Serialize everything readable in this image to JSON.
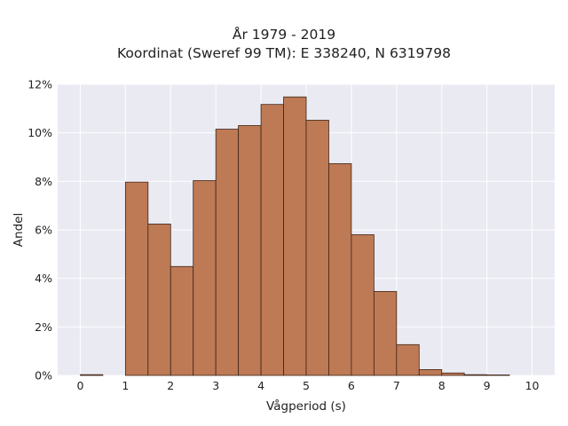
{
  "chart_data": {
    "type": "bar",
    "title": "År 1979 - 2019",
    "subtitle": "Koordinat (Sweref 99 TM): E 338240, N 6319798",
    "xlabel": "Vågperiod (s)",
    "ylabel": "Andel",
    "xlim": [
      -0.5,
      10.5
    ],
    "ylim": [
      0,
      12
    ],
    "xticks": [
      "0",
      "1",
      "2",
      "3",
      "4",
      "5",
      "6",
      "7",
      "8",
      "9",
      "10"
    ],
    "yticks": [
      "0%",
      "2%",
      "4%",
      "6%",
      "8%",
      "10%",
      "12%"
    ],
    "bin_width": 0.5,
    "bins": [
      {
        "start": 0.0,
        "value": 0.03
      },
      {
        "start": 0.5,
        "value": 0.0
      },
      {
        "start": 1.0,
        "value": 7.97
      },
      {
        "start": 1.5,
        "value": 6.24
      },
      {
        "start": 2.0,
        "value": 4.49
      },
      {
        "start": 2.5,
        "value": 8.03
      },
      {
        "start": 3.0,
        "value": 10.15
      },
      {
        "start": 3.5,
        "value": 10.3
      },
      {
        "start": 4.0,
        "value": 11.17
      },
      {
        "start": 4.5,
        "value": 11.48
      },
      {
        "start": 5.0,
        "value": 10.52
      },
      {
        "start": 5.5,
        "value": 8.73
      },
      {
        "start": 6.0,
        "value": 5.8
      },
      {
        "start": 6.5,
        "value": 3.46
      },
      {
        "start": 7.0,
        "value": 1.27
      },
      {
        "start": 7.5,
        "value": 0.24
      },
      {
        "start": 8.0,
        "value": 0.1
      },
      {
        "start": 8.5,
        "value": 0.03
      },
      {
        "start": 9.0,
        "value": 0.02
      },
      {
        "start": 9.5,
        "value": 0.0
      }
    ],
    "grid": true,
    "colors": {
      "bar": "#bd7a55",
      "bar_edge": "#3f2418",
      "plot_bg": "#eaeaf2",
      "grid": "#ffffff"
    }
  }
}
